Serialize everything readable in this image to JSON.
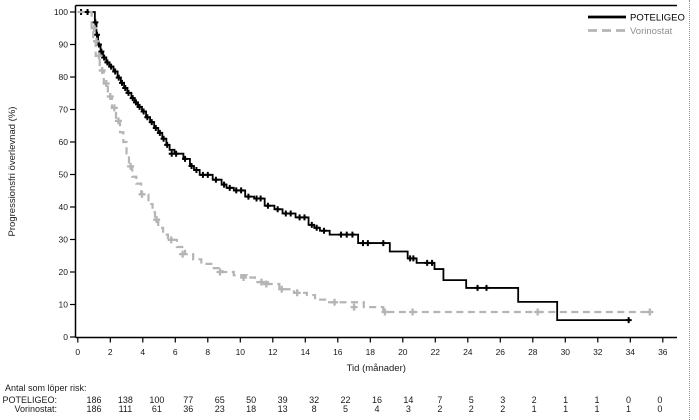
{
  "colors": {
    "poteligeo": "#000000",
    "vorinostat": "#b5b5b5",
    "vorinostat_text": "#8f8f8f",
    "axis": "#000000",
    "text": "#1a1a1a"
  },
  "chart_data": {
    "type": "line",
    "subtype": "kaplan-meier-step",
    "xlabel": "Tid (månader)",
    "ylabel": "Progressionsfri överlevnad (%)",
    "xlim": [
      0,
      36
    ],
    "ylim": [
      0,
      100
    ],
    "xticks": [
      0,
      2,
      4,
      6,
      8,
      10,
      12,
      14,
      16,
      18,
      20,
      22,
      24,
      26,
      28,
      30,
      32,
      34,
      36
    ],
    "yticks": [
      0,
      10,
      20,
      30,
      40,
      50,
      60,
      70,
      80,
      90,
      100
    ],
    "grid": false,
    "legend_position": "top-right",
    "series": [
      {
        "name": "POTELIGEO",
        "style": "solid",
        "end_month": 34.0,
        "steps": [
          [
            0,
            100
          ],
          [
            1.05,
            96.8
          ],
          [
            1.15,
            93
          ],
          [
            1.25,
            90
          ],
          [
            1.4,
            87.8
          ],
          [
            1.55,
            86
          ],
          [
            1.75,
            84.5
          ],
          [
            1.95,
            83.2
          ],
          [
            2.2,
            81.7
          ],
          [
            2.45,
            79.8
          ],
          [
            2.65,
            78.2
          ],
          [
            2.85,
            76.6
          ],
          [
            3.05,
            75.1
          ],
          [
            3.3,
            73.5
          ],
          [
            3.5,
            72.2
          ],
          [
            3.7,
            70.8
          ],
          [
            3.95,
            69.4
          ],
          [
            4.2,
            67.6
          ],
          [
            4.45,
            66.1
          ],
          [
            4.7,
            64.3
          ],
          [
            4.95,
            62.8
          ],
          [
            5.2,
            61.0
          ],
          [
            5.45,
            59.1
          ],
          [
            5.65,
            57.6
          ],
          [
            5.95,
            56.4
          ],
          [
            6.5,
            54.8
          ],
          [
            6.9,
            52.6
          ],
          [
            7.15,
            51.4
          ],
          [
            7.5,
            49.9
          ],
          [
            8.3,
            48.4
          ],
          [
            8.85,
            46.9
          ],
          [
            9.15,
            45.9
          ],
          [
            9.6,
            45.1
          ],
          [
            10.3,
            43.2
          ],
          [
            10.85,
            42.6
          ],
          [
            11.5,
            40.4
          ],
          [
            12.1,
            39.3
          ],
          [
            12.6,
            38.0
          ],
          [
            13.4,
            36.8
          ],
          [
            14.2,
            34.5
          ],
          [
            14.55,
            33.6
          ],
          [
            14.9,
            32.7
          ],
          [
            15.5,
            31.5
          ],
          [
            17.25,
            28.9
          ],
          [
            19.2,
            26.3
          ],
          [
            20.3,
            24.2
          ],
          [
            20.85,
            22.8
          ],
          [
            21.95,
            20.9
          ],
          [
            22.5,
            17.5
          ],
          [
            23.9,
            15.1
          ],
          [
            27.1,
            10.8
          ],
          [
            29.5,
            5.2
          ]
        ],
        "censors": [
          [
            0.2,
            100
          ],
          [
            0.6,
            100
          ],
          [
            1.08,
            96.8
          ],
          [
            1.18,
            93
          ],
          [
            1.3,
            90
          ],
          [
            1.45,
            87.8
          ],
          [
            1.62,
            86
          ],
          [
            1.82,
            84.5
          ],
          [
            2.05,
            83.2
          ],
          [
            2.3,
            81.7
          ],
          [
            2.52,
            79.8
          ],
          [
            2.72,
            78.2
          ],
          [
            2.92,
            76.6
          ],
          [
            3.12,
            75.1
          ],
          [
            3.38,
            73.5
          ],
          [
            3.58,
            72.2
          ],
          [
            3.8,
            70.8
          ],
          [
            4.05,
            69.4
          ],
          [
            4.28,
            67.6
          ],
          [
            4.55,
            66.1
          ],
          [
            4.8,
            64.3
          ],
          [
            5.05,
            62.8
          ],
          [
            5.28,
            61.0
          ],
          [
            5.5,
            59.1
          ],
          [
            5.78,
            56.4
          ],
          [
            6.05,
            56.4
          ],
          [
            6.6,
            54.8
          ],
          [
            7.0,
            52.6
          ],
          [
            7.3,
            51.4
          ],
          [
            7.7,
            49.9
          ],
          [
            8.0,
            49.9
          ],
          [
            8.5,
            48.4
          ],
          [
            9.0,
            46.9
          ],
          [
            9.35,
            45.9
          ],
          [
            9.75,
            45.1
          ],
          [
            10.05,
            45.1
          ],
          [
            10.5,
            43.2
          ],
          [
            11.0,
            42.6
          ],
          [
            11.25,
            42.6
          ],
          [
            11.7,
            40.4
          ],
          [
            12.3,
            39.3
          ],
          [
            12.8,
            38.0
          ],
          [
            13.1,
            38.0
          ],
          [
            13.65,
            36.8
          ],
          [
            13.95,
            36.8
          ],
          [
            14.4,
            34.5
          ],
          [
            14.7,
            33.6
          ],
          [
            15.15,
            32.7
          ],
          [
            16.2,
            31.5
          ],
          [
            16.55,
            31.5
          ],
          [
            16.9,
            31.5
          ],
          [
            17.55,
            28.9
          ],
          [
            17.85,
            28.9
          ],
          [
            18.8,
            28.9
          ],
          [
            20.45,
            24.2
          ],
          [
            20.65,
            24.2
          ],
          [
            21.5,
            22.8
          ],
          [
            21.8,
            22.8
          ],
          [
            24.6,
            15.1
          ],
          [
            25.15,
            15.1
          ],
          [
            33.9,
            5.2
          ]
        ]
      },
      {
        "name": "Vorinostat",
        "style": "dashed",
        "end_month": 35.4,
        "steps": [
          [
            0,
            100
          ],
          [
            0.85,
            95
          ],
          [
            0.95,
            91
          ],
          [
            1.1,
            86.5
          ],
          [
            1.35,
            82
          ],
          [
            1.6,
            78
          ],
          [
            1.85,
            74
          ],
          [
            2.1,
            70.5
          ],
          [
            2.35,
            66.5
          ],
          [
            2.6,
            63
          ],
          [
            2.8,
            60
          ],
          [
            3.0,
            56.5
          ],
          [
            3.15,
            52.5
          ],
          [
            3.35,
            49.3
          ],
          [
            3.6,
            47.2
          ],
          [
            3.9,
            43.9
          ],
          [
            4.35,
            40.9
          ],
          [
            4.6,
            38.4
          ],
          [
            4.75,
            36.1
          ],
          [
            4.95,
            33.6
          ],
          [
            5.25,
            31.5
          ],
          [
            5.55,
            29.9
          ],
          [
            6.1,
            27.7
          ],
          [
            6.6,
            25.5
          ],
          [
            7.1,
            23.9
          ],
          [
            7.6,
            22.5
          ],
          [
            8.3,
            21.2
          ],
          [
            8.9,
            20.0
          ],
          [
            9.6,
            19.0
          ],
          [
            10.4,
            18.3
          ],
          [
            10.9,
            16.9
          ],
          [
            11.7,
            16.3
          ],
          [
            12.4,
            14.7
          ],
          [
            13.3,
            13.6
          ],
          [
            14.1,
            12.9
          ],
          [
            14.6,
            11.5
          ],
          [
            15.3,
            10.7
          ],
          [
            17.6,
            9.2
          ],
          [
            18.8,
            7.7
          ]
        ],
        "censors": [
          [
            1.0,
            95
          ],
          [
            1.15,
            91
          ],
          [
            1.3,
            86.5
          ],
          [
            1.5,
            82
          ],
          [
            1.75,
            78
          ],
          [
            2.0,
            74
          ],
          [
            2.25,
            70.5
          ],
          [
            2.5,
            66.5
          ],
          [
            3.25,
            52.5
          ],
          [
            3.95,
            43.9
          ],
          [
            4.85,
            36.1
          ],
          [
            5.75,
            29.9
          ],
          [
            6.45,
            25.5
          ],
          [
            8.75,
            20.0
          ],
          [
            10.2,
            18.3
          ],
          [
            11.3,
            16.9
          ],
          [
            11.6,
            16.3
          ],
          [
            12.55,
            14.7
          ],
          [
            13.5,
            13.6
          ],
          [
            15.8,
            10.7
          ],
          [
            17.0,
            9.2
          ],
          [
            18.9,
            7.7
          ],
          [
            20.6,
            7.7
          ],
          [
            28.3,
            7.7
          ],
          [
            35.2,
            7.7
          ]
        ]
      }
    ]
  },
  "legend": {
    "items": [
      {
        "label": "POTELIGEO"
      },
      {
        "label": "Vorinostat"
      }
    ]
  },
  "risk_table": {
    "heading": "Antal som löper risk:",
    "months": [
      0,
      2,
      4,
      6,
      8,
      10,
      12,
      14,
      16,
      18,
      20,
      22,
      24,
      26,
      28,
      30,
      32,
      34,
      36
    ],
    "rows": [
      {
        "label": "POTELIGEO:",
        "counts": [
          186,
          138,
          100,
          77,
          65,
          50,
          39,
          32,
          22,
          16,
          14,
          7,
          5,
          3,
          2,
          1,
          1,
          0,
          0
        ]
      },
      {
        "label": "Vorinostat:",
        "counts": [
          186,
          111,
          61,
          36,
          23,
          18,
          13,
          8,
          5,
          4,
          3,
          2,
          2,
          2,
          1,
          1,
          1,
          1,
          0
        ]
      }
    ]
  }
}
